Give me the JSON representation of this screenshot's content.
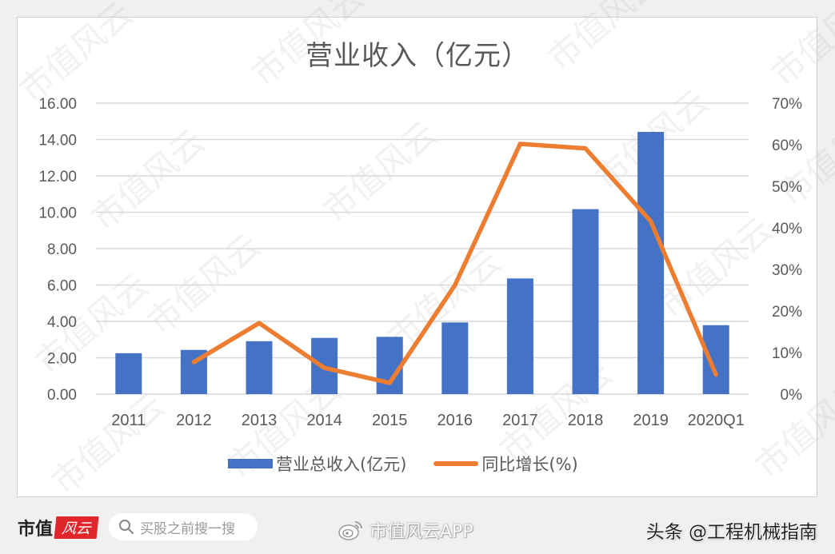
{
  "chart_data": {
    "type": "bar+line",
    "title": "营业收入（亿元）",
    "categories": [
      "2011",
      "2012",
      "2013",
      "2014",
      "2015",
      "2016",
      "2017",
      "2018",
      "2019",
      "2020Q1"
    ],
    "series": [
      {
        "name": "营业总收入(亿元)",
        "type": "bar",
        "axis": "left",
        "color": "#4472c4",
        "values": [
          2.25,
          2.43,
          2.91,
          3.09,
          3.15,
          3.94,
          6.36,
          10.17,
          14.42,
          3.79
        ]
      },
      {
        "name": "同比增长(%)",
        "type": "line",
        "axis": "right",
        "color": "#ed7d31",
        "values": [
          null,
          7.7,
          17.1,
          6.3,
          2.7,
          26.2,
          60.2,
          59.1,
          41.6,
          4.7
        ]
      }
    ],
    "left_axis": {
      "ylim": [
        0,
        16
      ],
      "ticks": [
        "0.00",
        "2.00",
        "4.00",
        "6.00",
        "8.00",
        "10.00",
        "12.00",
        "14.00",
        "16.00"
      ]
    },
    "right_axis": {
      "ylim": [
        0,
        70
      ],
      "ticks": [
        "0%",
        "10%",
        "20%",
        "30%",
        "40%",
        "50%",
        "60%",
        "70%"
      ]
    },
    "xlabel": "",
    "ylabel": "",
    "grid": true,
    "legend_position": "bottom"
  },
  "title": "营业收入（亿元）",
  "legend": [
    {
      "label": "营业总收入(亿元)",
      "color": "#4472c4",
      "kind": "bar"
    },
    {
      "label": "同比增长(%)",
      "color": "#ed7d31",
      "kind": "line"
    }
  ],
  "footer": {
    "logo_left": "市值",
    "logo_right": "风云",
    "search_placeholder": "买股之前搜一搜",
    "search_icon": "search-icon",
    "weibo_icon": "weibo-icon",
    "weibo_text": "市值风云APP",
    "toutiao_text": "头条 @工程机械指南"
  },
  "watermark": "市值风云"
}
